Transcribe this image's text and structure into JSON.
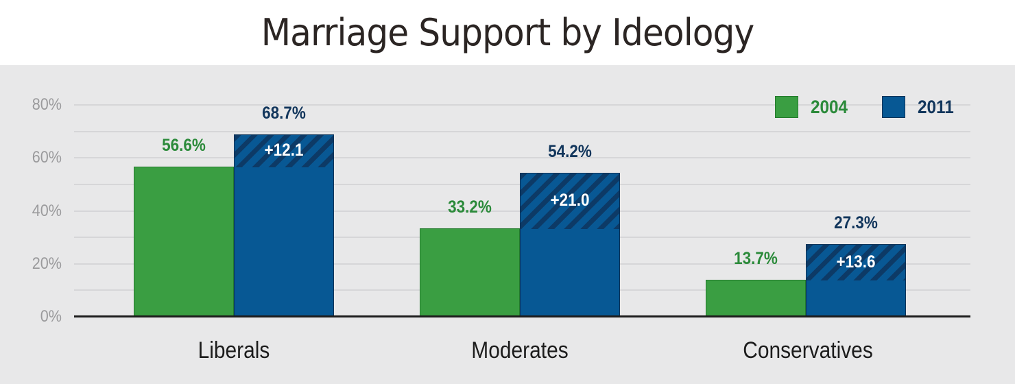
{
  "title": "Marriage Support by Ideology",
  "legend": [
    {
      "label": "2004",
      "color": "#3a9e42",
      "text_color": "#2b8a3a"
    },
    {
      "label": "2011",
      "color": "#075894",
      "text_color": "#12365c"
    }
  ],
  "y_axis": {
    "ticks": [
      "80%",
      "60%",
      "40%",
      "20%",
      "0%"
    ]
  },
  "groups": [
    {
      "category": "Liberals",
      "v2004_label": "56.6%",
      "v2011_label": "68.7%",
      "delta_label": "+12.1"
    },
    {
      "category": "Moderates",
      "v2004_label": "33.2%",
      "v2011_label": "54.2%",
      "delta_label": "+21.0"
    },
    {
      "category": "Conservatives",
      "v2004_label": "13.7%",
      "v2011_label": "27.3%",
      "delta_label": "+13.6"
    }
  ],
  "chart_data": {
    "type": "bar",
    "title": "Marriage Support by Ideology",
    "categories": [
      "Liberals",
      "Moderates",
      "Conservatives"
    ],
    "series": [
      {
        "name": "2004",
        "values": [
          56.6,
          33.2,
          13.7
        ],
        "color": "#3a9e42"
      },
      {
        "name": "2011",
        "values": [
          68.7,
          54.2,
          27.3
        ],
        "color": "#075894"
      }
    ],
    "annotations": [
      {
        "category": "Liberals",
        "text": "+12.1",
        "type": "increase 2004→2011 (hatched)"
      },
      {
        "category": "Moderates",
        "text": "+21.0",
        "type": "increase 2004→2011 (hatched)"
      },
      {
        "category": "Conservatives",
        "text": "+13.6",
        "type": "increase 2004→2011 (hatched)"
      }
    ],
    "xlabel": "",
    "ylabel": "",
    "ylim": [
      0,
      80
    ],
    "yticks": [
      0,
      20,
      40,
      60,
      80
    ],
    "ytick_format": "percent",
    "grid": true,
    "grid_interval": 10,
    "legend_position": "top-right",
    "stacked_overlay": "2011 bar shows hatched segment above 2004 value representing the change"
  }
}
